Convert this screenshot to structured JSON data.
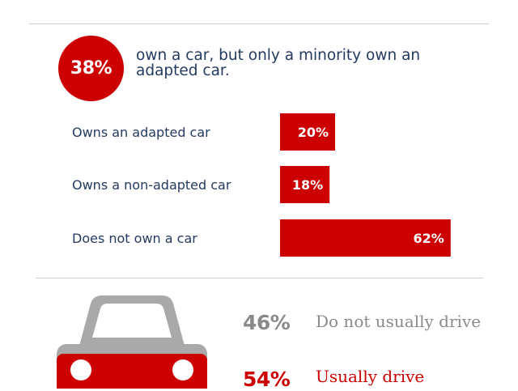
{
  "colors": {
    "accent": "#cc0000",
    "text": "#243a5e",
    "grey": "#8a8a8a",
    "car_grey": "#a9a9a9"
  },
  "highlight": {
    "value": "38%",
    "text": "own a car, but only a minority own an adapted car."
  },
  "chart_data": {
    "type": "bar",
    "orientation": "horizontal",
    "categories": [
      "Owns an adapted car",
      "Owns a non-adapted car",
      "Does not own a car"
    ],
    "values": [
      20,
      18,
      62
    ],
    "value_labels": [
      "20%",
      "18%",
      "62%"
    ],
    "unit": "%",
    "xlim": [
      0,
      100
    ]
  },
  "driving": [
    {
      "value": "46%",
      "label": "Do not usually drive",
      "color": "#8a8a8a"
    },
    {
      "value": "54%",
      "label": "Usually drive",
      "color": "#cc0000"
    }
  ],
  "car_icon": "car-icon"
}
